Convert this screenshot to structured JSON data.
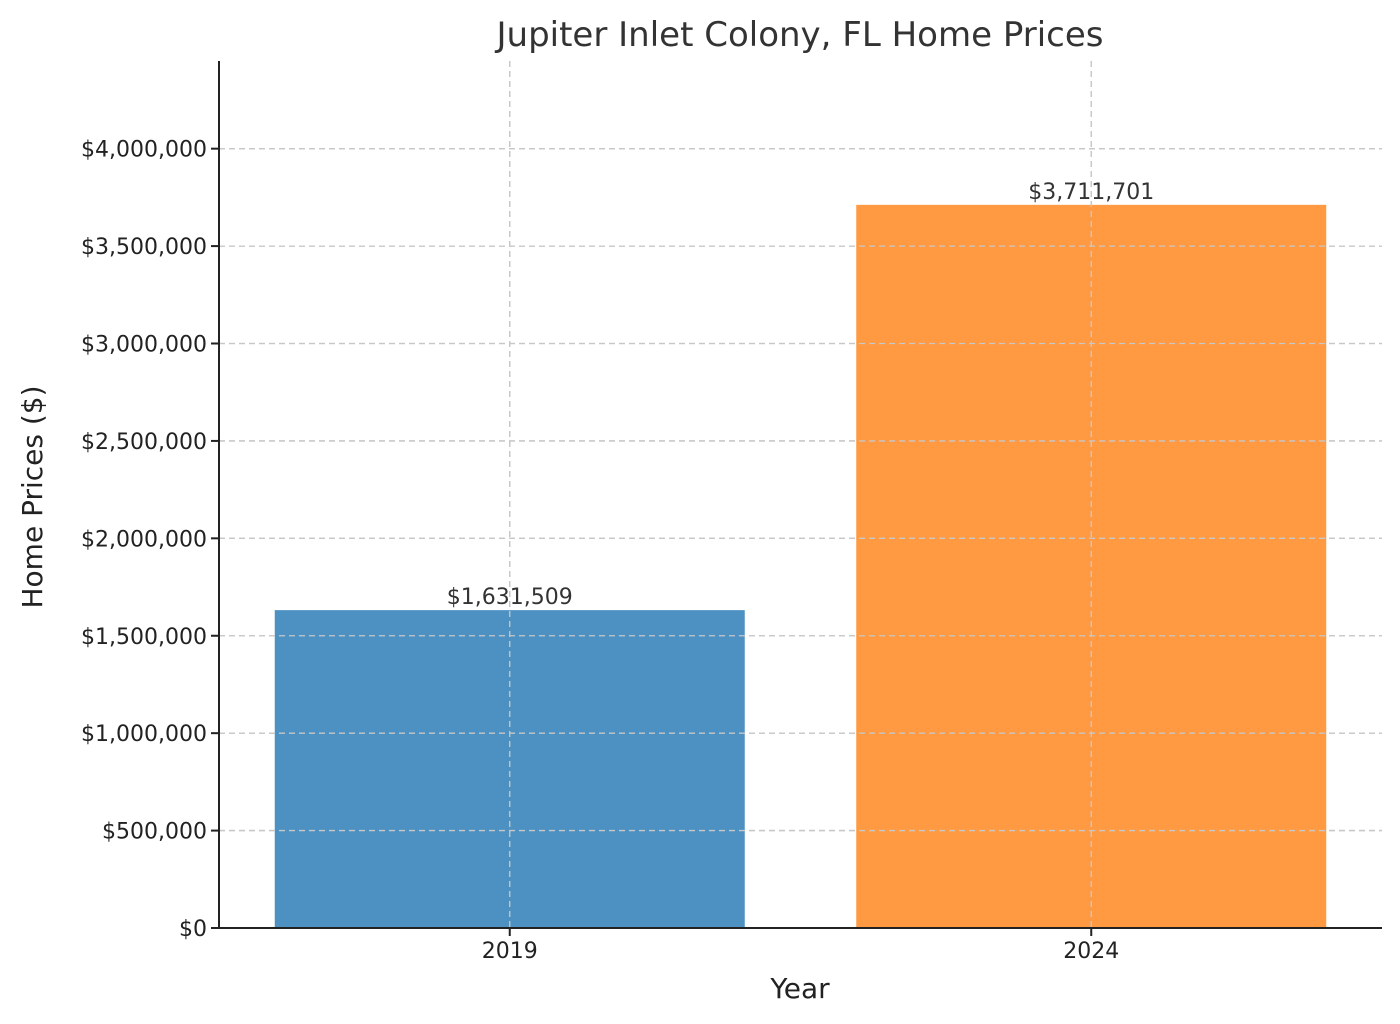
{
  "chart_data": {
    "type": "bar",
    "title": "Jupiter Inlet Colony, FL Home Prices",
    "xlabel": "Year",
    "ylabel": "Home Prices ($)",
    "categories": [
      "2019",
      "2024"
    ],
    "values": [
      1631509,
      3711701
    ],
    "data_labels": [
      "$1,631,509",
      "$3,711,701"
    ],
    "bar_colors": [
      "#4c91c2",
      "#ff9a42"
    ],
    "ylim": [
      0,
      4450000
    ],
    "yticks": [
      0,
      500000,
      1000000,
      1500000,
      2000000,
      2500000,
      3000000,
      3500000,
      4000000
    ],
    "ytick_labels": [
      "$0",
      "$500,000",
      "$1,000,000",
      "$1,500,000",
      "$2,000,000",
      "$2,500,000",
      "$3,000,000",
      "$3,500,000",
      "$4,000,000"
    ],
    "grid": true,
    "legend": "none"
  }
}
